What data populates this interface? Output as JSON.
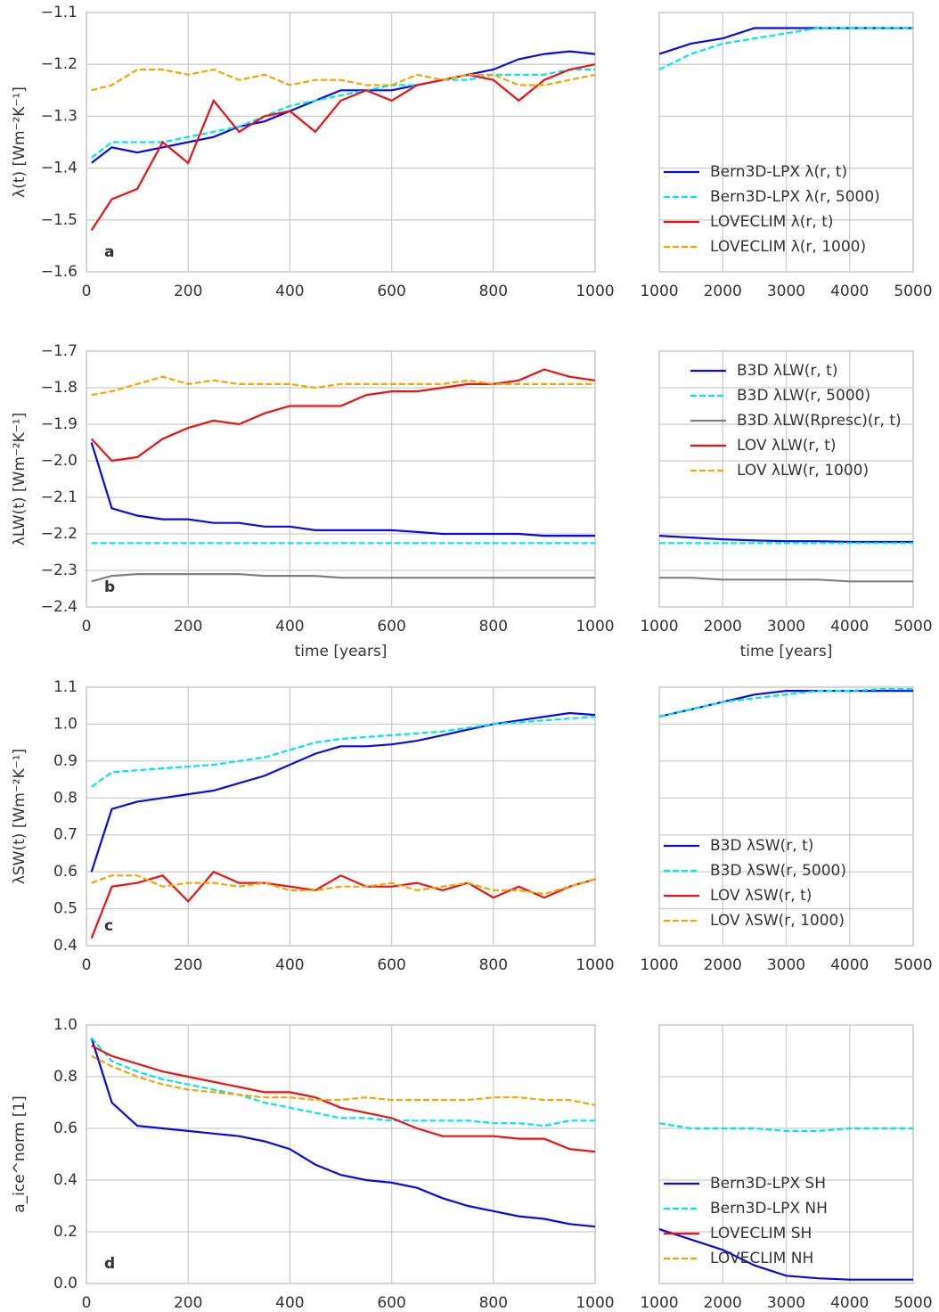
{
  "chart_data": [
    {
      "type": "line",
      "label": "a",
      "ylabel": "λ(t) [Wm⁻²K⁻¹]",
      "x": [
        10,
        50,
        100,
        150,
        200,
        250,
        300,
        350,
        400,
        450,
        500,
        550,
        600,
        650,
        700,
        750,
        800,
        850,
        900,
        950,
        1000
      ],
      "xlim": [
        0,
        1000
      ],
      "xticks": [
        0,
        200,
        400,
        600,
        800,
        1000
      ],
      "ylim": [
        -1.6,
        -1.1
      ],
      "yticks": [
        {
          "value": -1.6,
          "label": "−1.6"
        },
        {
          "value": -1.5,
          "label": "−1.5"
        },
        {
          "value": -1.4,
          "label": "−1.4"
        },
        {
          "value": -1.3,
          "label": "−1.3"
        },
        {
          "value": -1.2,
          "label": "−1.2"
        },
        {
          "value": -1.1,
          "label": "−1.1"
        }
      ],
      "grid": true,
      "series": [
        {
          "color": "#0a0ae6",
          "style": "solid",
          "values": [
            -1.39,
            -1.36,
            -1.37,
            -1.36,
            -1.35,
            -1.34,
            -1.32,
            -1.31,
            -1.29,
            -1.27,
            -1.25,
            -1.25,
            -1.25,
            -1.24,
            -1.23,
            -1.22,
            -1.21,
            -1.19,
            -1.18,
            -1.175,
            -1.18
          ]
        },
        {
          "color": "#00e5ee",
          "style": "dashed",
          "values": [
            -1.38,
            -1.35,
            -1.35,
            -1.35,
            -1.34,
            -1.33,
            -1.32,
            -1.3,
            -1.28,
            -1.27,
            -1.26,
            -1.25,
            -1.24,
            -1.24,
            -1.23,
            -1.23,
            -1.22,
            -1.22,
            -1.22,
            -1.21,
            -1.21
          ]
        },
        {
          "color": "#ee1111",
          "style": "solid",
          "values": [
            -1.52,
            -1.46,
            -1.44,
            -1.35,
            -1.39,
            -1.27,
            -1.33,
            -1.3,
            -1.29,
            -1.33,
            -1.27,
            -1.25,
            -1.27,
            -1.24,
            -1.23,
            -1.22,
            -1.23,
            -1.27,
            -1.23,
            -1.21,
            -1.2
          ]
        },
        {
          "color": "#f5a500",
          "style": "dashed",
          "values": [
            -1.25,
            -1.24,
            -1.21,
            -1.21,
            -1.22,
            -1.21,
            -1.23,
            -1.22,
            -1.24,
            -1.23,
            -1.23,
            -1.24,
            -1.24,
            -1.22,
            -1.23,
            -1.22,
            -1.22,
            -1.24,
            -1.24,
            -1.23,
            -1.22
          ]
        }
      ]
    },
    {
      "type": "line",
      "legend": "lower right",
      "x": [
        1000,
        1500,
        2000,
        2500,
        3000,
        3500,
        4000,
        4500,
        5000
      ],
      "xlim": [
        1000,
        5000
      ],
      "xticks": [
        1000,
        2000,
        3000,
        4000,
        5000
      ],
      "series": [
        {
          "name": "Bern3D-LPX λ(r, t)",
          "color": "#0a0ae6",
          "style": "solid",
          "values": [
            -1.18,
            -1.16,
            -1.15,
            -1.13,
            -1.13,
            -1.13,
            -1.13,
            -1.13,
            -1.13
          ]
        },
        {
          "name": "Bern3D-LPX λ(r, 5000)",
          "color": "#00e5ee",
          "style": "dashed",
          "values": [
            -1.21,
            -1.18,
            -1.16,
            -1.15,
            -1.14,
            -1.13,
            -1.13,
            -1.13,
            -1.13
          ]
        },
        {
          "name": "LOVECLIM λ(r, t)",
          "color": "#ee1111",
          "style": "solid",
          "values": [
            null,
            null,
            null,
            null,
            null,
            null,
            null,
            null,
            null
          ]
        },
        {
          "name": "LOVECLIM λ(r, 1000)",
          "color": "#f5a500",
          "style": "dashed",
          "values": [
            null,
            null,
            null,
            null,
            null,
            null,
            null,
            null,
            null
          ]
        }
      ]
    },
    {
      "type": "line",
      "label": "b",
      "ylabel": "λLW(t) [Wm⁻²K⁻¹]",
      "xlabel": "time [years]",
      "x": [
        10,
        50,
        100,
        150,
        200,
        250,
        300,
        350,
        400,
        450,
        500,
        550,
        600,
        650,
        700,
        750,
        800,
        850,
        900,
        950,
        1000
      ],
      "xlim": [
        0,
        1000
      ],
      "xticks": [
        0,
        200,
        400,
        600,
        800,
        1000
      ],
      "ylim": [
        -2.4,
        -1.7
      ],
      "yticks": [
        {
          "value": -2.4,
          "label": "−2.4"
        },
        {
          "value": -2.3,
          "label": "−2.3"
        },
        {
          "value": -2.2,
          "label": "−2.2"
        },
        {
          "value": -2.1,
          "label": "−2.1"
        },
        {
          "value": -2.0,
          "label": "−2.0"
        },
        {
          "value": -1.9,
          "label": "−1.9"
        },
        {
          "value": -1.8,
          "label": "−1.8"
        },
        {
          "value": -1.7,
          "label": "−1.7"
        }
      ],
      "grid": true,
      "series": [
        {
          "color": "#0a0ae6",
          "style": "solid",
          "values": [
            -1.95,
            -2.13,
            -2.15,
            -2.16,
            -2.16,
            -2.17,
            -2.17,
            -2.18,
            -2.18,
            -2.19,
            -2.19,
            -2.19,
            -2.19,
            -2.195,
            -2.2,
            -2.2,
            -2.2,
            -2.2,
            -2.205,
            -2.205,
            -2.205
          ]
        },
        {
          "color": "#00e5ee",
          "style": "dashed",
          "values": [
            -2.225,
            -2.225,
            -2.225,
            -2.225,
            -2.225,
            -2.225,
            -2.225,
            -2.225,
            -2.225,
            -2.225,
            -2.225,
            -2.225,
            -2.225,
            -2.225,
            -2.225,
            -2.225,
            -2.225,
            -2.225,
            -2.225,
            -2.225,
            -2.225
          ]
        },
        {
          "color": "#808080",
          "style": "solid",
          "values": [
            -2.33,
            -2.315,
            -2.31,
            -2.31,
            -2.31,
            -2.31,
            -2.31,
            -2.315,
            -2.315,
            -2.315,
            -2.32,
            -2.32,
            -2.32,
            -2.32,
            -2.32,
            -2.32,
            -2.32,
            -2.32,
            -2.32,
            -2.32,
            -2.32
          ]
        },
        {
          "color": "#ee1111",
          "style": "solid",
          "values": [
            -1.94,
            -2.0,
            -1.99,
            -1.94,
            -1.91,
            -1.89,
            -1.9,
            -1.87,
            -1.85,
            -1.85,
            -1.85,
            -1.82,
            -1.81,
            -1.81,
            -1.8,
            -1.79,
            -1.79,
            -1.78,
            -1.75,
            -1.77,
            -1.78
          ]
        },
        {
          "color": "#f5a500",
          "style": "dashed",
          "values": [
            -1.82,
            -1.81,
            -1.79,
            -1.77,
            -1.79,
            -1.78,
            -1.79,
            -1.79,
            -1.79,
            -1.8,
            -1.79,
            -1.79,
            -1.79,
            -1.79,
            -1.79,
            -1.78,
            -1.79,
            -1.79,
            -1.79,
            -1.79,
            -1.79
          ]
        }
      ]
    },
    {
      "type": "line",
      "legend": "upper right",
      "xlabel": "time [years]",
      "x": [
        1000,
        1500,
        2000,
        2500,
        3000,
        3500,
        4000,
        4500,
        5000
      ],
      "xlim": [
        1000,
        5000
      ],
      "xticks": [
        1000,
        2000,
        3000,
        4000,
        5000
      ],
      "series": [
        {
          "name": "B3D λLW(r, t)",
          "color": "#0a0ae6",
          "style": "solid",
          "values": [
            -2.205,
            -2.21,
            -2.215,
            -2.218,
            -2.22,
            -2.22,
            -2.222,
            -2.222,
            -2.222
          ]
        },
        {
          "name": "B3D λLW(r, 5000)",
          "color": "#00e5ee",
          "style": "dashed",
          "values": [
            -2.225,
            -2.225,
            -2.225,
            -2.225,
            -2.225,
            -2.225,
            -2.225,
            -2.225,
            -2.225
          ]
        },
        {
          "name": "B3D λLW(Rpresc)(r, t)",
          "color": "#808080",
          "style": "solid",
          "values": [
            -2.32,
            -2.32,
            -2.325,
            -2.325,
            -2.325,
            -2.325,
            -2.33,
            -2.33,
            -2.33
          ]
        },
        {
          "name": "LOV λLW(r, t)",
          "color": "#ee1111",
          "style": "solid",
          "values": [
            null,
            null,
            null,
            null,
            null,
            null,
            null,
            null,
            null
          ]
        },
        {
          "name": "LOV λLW(r, 1000)",
          "color": "#f5a500",
          "style": "dashed",
          "values": [
            null,
            null,
            null,
            null,
            null,
            null,
            null,
            null,
            null
          ]
        }
      ]
    },
    {
      "type": "line",
      "label": "c",
      "ylabel": "λSW(t) [Wm⁻²K⁻¹]",
      "x": [
        10,
        50,
        100,
        150,
        200,
        250,
        300,
        350,
        400,
        450,
        500,
        550,
        600,
        650,
        700,
        750,
        800,
        850,
        900,
        950,
        1000
      ],
      "xlim": [
        0,
        1000
      ],
      "xticks": [
        0,
        200,
        400,
        600,
        800,
        1000
      ],
      "ylim": [
        0.4,
        1.1
      ],
      "yticks": [
        0.4,
        0.5,
        0.6,
        0.7,
        0.8,
        0.9,
        {
          "value": 1.0,
          "label": "1.0"
        },
        1.1
      ],
      "grid": true,
      "series": [
        {
          "color": "#0a0ae6",
          "style": "solid",
          "values": [
            0.6,
            0.77,
            0.79,
            0.8,
            0.81,
            0.82,
            0.84,
            0.86,
            0.89,
            0.92,
            0.94,
            0.94,
            0.945,
            0.955,
            0.97,
            0.985,
            1.0,
            1.01,
            1.02,
            1.03,
            1.025
          ]
        },
        {
          "color": "#00e5ee",
          "style": "dashed",
          "values": [
            0.83,
            0.87,
            0.875,
            0.88,
            0.885,
            0.89,
            0.9,
            0.91,
            0.93,
            0.95,
            0.96,
            0.965,
            0.97,
            0.975,
            0.98,
            0.99,
            1.0,
            1.005,
            1.01,
            1.015,
            1.02
          ]
        },
        {
          "color": "#ee1111",
          "style": "solid",
          "values": [
            0.42,
            0.56,
            0.57,
            0.59,
            0.52,
            0.6,
            0.57,
            0.57,
            0.56,
            0.55,
            0.59,
            0.56,
            0.56,
            0.57,
            0.55,
            0.57,
            0.53,
            0.56,
            0.53,
            0.56,
            0.58
          ]
        },
        {
          "color": "#f5a500",
          "style": "dashed",
          "values": [
            0.57,
            0.59,
            0.59,
            0.56,
            0.57,
            0.57,
            0.56,
            0.57,
            0.55,
            0.55,
            0.56,
            0.56,
            0.57,
            0.55,
            0.56,
            0.57,
            0.55,
            0.55,
            0.54,
            0.56,
            0.58
          ]
        }
      ]
    },
    {
      "type": "line",
      "legend": "lower right",
      "x": [
        1000,
        1500,
        2000,
        2500,
        3000,
        3500,
        4000,
        4500,
        5000
      ],
      "xlim": [
        1000,
        5000
      ],
      "xticks": [
        1000,
        2000,
        3000,
        4000,
        5000
      ],
      "series": [
        {
          "name": "B3D λSW(r, t)",
          "color": "#0a0ae6",
          "style": "solid",
          "values": [
            1.02,
            1.04,
            1.06,
            1.08,
            1.09,
            1.09,
            1.09,
            1.09,
            1.09
          ]
        },
        {
          "name": "B3D λSW(r, 5000)",
          "color": "#00e5ee",
          "style": "dashed",
          "values": [
            1.02,
            1.04,
            1.06,
            1.07,
            1.08,
            1.09,
            1.09,
            1.095,
            1.095
          ]
        },
        {
          "name": "LOV λSW(r, t)",
          "color": "#ee1111",
          "style": "solid",
          "values": [
            null,
            null,
            null,
            null,
            null,
            null,
            null,
            null,
            null
          ]
        },
        {
          "name": "LOV λSW(r, 1000)",
          "color": "#f5a500",
          "style": "dashed",
          "values": [
            null,
            null,
            null,
            null,
            null,
            null,
            null,
            null,
            null
          ]
        }
      ]
    },
    {
      "type": "line",
      "label": "d",
      "ylabel": "a_ice^norm [1]",
      "x": [
        10,
        50,
        100,
        150,
        200,
        250,
        300,
        350,
        400,
        450,
        500,
        550,
        600,
        650,
        700,
        750,
        800,
        850,
        900,
        950,
        1000
      ],
      "xlim": [
        0,
        1000
      ],
      "xticks": [
        0,
        200,
        400,
        600,
        800,
        1000
      ],
      "ylim": [
        0,
        1.0
      ],
      "yticks": [
        {
          "value": 0,
          "label": "0.0"
        },
        0.2,
        0.4,
        0.6,
        0.8,
        {
          "value": 1.0,
          "label": "1.0"
        }
      ],
      "grid": true,
      "series": [
        {
          "color": "#0a0ae6",
          "style": "solid",
          "values": [
            0.95,
            0.7,
            0.61,
            0.6,
            0.59,
            0.58,
            0.57,
            0.55,
            0.52,
            0.46,
            0.42,
            0.4,
            0.39,
            0.37,
            0.33,
            0.3,
            0.28,
            0.26,
            0.25,
            0.23,
            0.22
          ]
        },
        {
          "color": "#00e5ee",
          "style": "dashed",
          "values": [
            0.95,
            0.86,
            0.82,
            0.79,
            0.77,
            0.75,
            0.73,
            0.7,
            0.68,
            0.66,
            0.64,
            0.64,
            0.63,
            0.63,
            0.63,
            0.63,
            0.62,
            0.62,
            0.61,
            0.63,
            0.63
          ]
        },
        {
          "color": "#ee1111",
          "style": "solid",
          "values": [
            0.92,
            0.88,
            0.85,
            0.82,
            0.8,
            0.78,
            0.76,
            0.74,
            0.74,
            0.72,
            0.68,
            0.66,
            0.64,
            0.6,
            0.57,
            0.57,
            0.57,
            0.56,
            0.56,
            0.52,
            0.51
          ]
        },
        {
          "color": "#f5a500",
          "style": "dashed",
          "values": [
            0.88,
            0.84,
            0.8,
            0.77,
            0.75,
            0.74,
            0.73,
            0.72,
            0.72,
            0.71,
            0.71,
            0.72,
            0.71,
            0.71,
            0.71,
            0.71,
            0.72,
            0.72,
            0.71,
            0.71,
            0.69
          ]
        }
      ]
    },
    {
      "type": "line",
      "legend": "lower right",
      "x": [
        1000,
        1500,
        2000,
        2500,
        3000,
        3500,
        4000,
        4500,
        5000
      ],
      "xlim": [
        1000,
        5000
      ],
      "xticks": [
        1000,
        2000,
        3000,
        4000,
        5000
      ],
      "series": [
        {
          "name": "Bern3D-LPX SH",
          "color": "#0a0ae6",
          "style": "solid",
          "values": [
            0.21,
            0.17,
            0.13,
            0.07,
            0.03,
            0.02,
            0.015,
            0.015,
            0.015
          ]
        },
        {
          "name": "Bern3D-LPX NH",
          "color": "#00e5ee",
          "style": "dashed",
          "values": [
            0.62,
            0.6,
            0.6,
            0.6,
            0.59,
            0.59,
            0.6,
            0.6,
            0.6
          ]
        },
        {
          "name": "LOVECLIM SH",
          "color": "#ee1111",
          "style": "solid",
          "values": [
            null,
            null,
            null,
            null,
            null,
            null,
            null,
            null,
            null
          ]
        },
        {
          "name": "LOVECLIM NH",
          "color": "#f5a500",
          "style": "dashed",
          "values": [
            null,
            null,
            null,
            null,
            null,
            null,
            null,
            null,
            null
          ]
        }
      ]
    }
  ]
}
